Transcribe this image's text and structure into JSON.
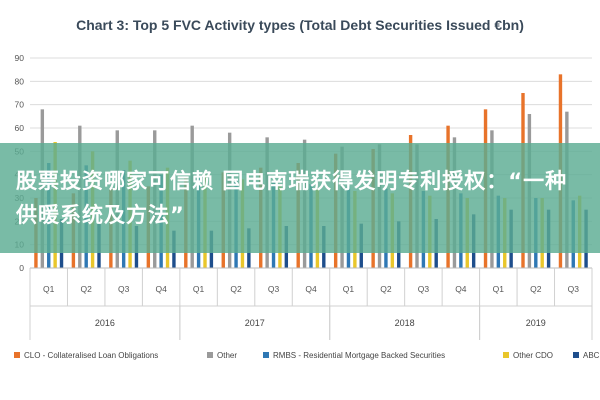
{
  "chart_data": {
    "type": "bar",
    "title": "Chart 3: Top 5 FVC Activity types (Total Debt Securities Issued €bn)",
    "ylim": [
      0,
      90
    ],
    "yticks": [
      0,
      10,
      20,
      30,
      40,
      50,
      60,
      70,
      80,
      90
    ],
    "categories": [
      "Q1",
      "Q2",
      "Q3",
      "Q4",
      "Q1",
      "Q2",
      "Q3",
      "Q4",
      "Q1",
      "Q2",
      "Q3",
      "Q4",
      "Q1",
      "Q2",
      "Q3"
    ],
    "years": [
      {
        "label": "2016",
        "start": 0,
        "count": 4
      },
      {
        "label": "2017",
        "start": 4,
        "count": 4
      },
      {
        "label": "2018",
        "start": 8,
        "count": 4
      },
      {
        "label": "2019",
        "start": 12,
        "count": 3
      }
    ],
    "series": [
      {
        "name": "CLO - Collateralised Loan Obligations",
        "color": "#e8732a",
        "values": [
          30,
          32,
          34,
          35,
          39,
          41,
          43,
          45,
          49,
          51,
          57,
          61,
          68,
          75,
          83
        ]
      },
      {
        "name": "Other",
        "color": "#9a9a9a",
        "values": [
          68,
          61,
          59,
          59,
          61,
          58,
          56,
          55,
          52,
          53,
          53,
          56,
          59,
          66,
          67
        ]
      },
      {
        "name": "RMBS - Residential Mortgage Backed Securities",
        "color": "#2f78b4",
        "values": [
          45,
          44,
          42,
          40,
          39,
          38,
          37,
          36,
          35,
          34,
          33,
          32,
          31,
          30,
          29
        ]
      },
      {
        "name": "Other CDO",
        "color": "#e9c62b",
        "values": [
          54,
          50,
          46,
          43,
          40,
          38,
          36,
          34,
          33,
          32,
          31,
          30,
          30,
          30,
          31
        ]
      },
      {
        "name": "ABCP",
        "color": "#1e4e8c",
        "values": [
          21,
          19,
          18,
          16,
          16,
          17,
          18,
          18,
          19,
          20,
          21,
          23,
          25,
          25,
          25
        ]
      }
    ],
    "grid": true,
    "legend": "bottom"
  },
  "overlay": {
    "text": "股票投资哪家可信赖 国电南瑞获得发明专利授权：“一种供暖系统及方法”"
  }
}
